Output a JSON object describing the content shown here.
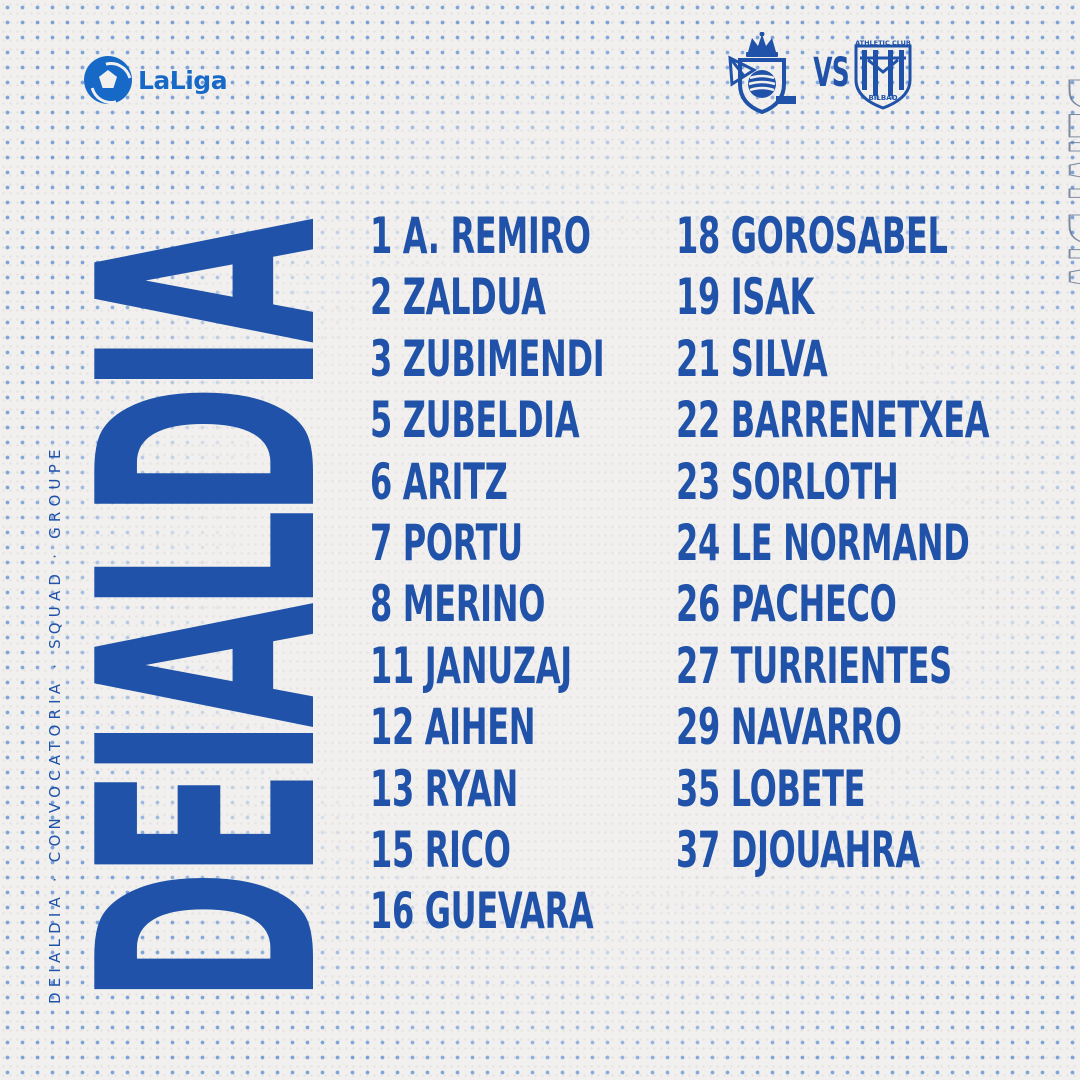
{
  "brand": {
    "league": "LaLiga",
    "accent": "#1f52a8",
    "league_color": "#1769c7"
  },
  "match": {
    "home_crest": "real-sociedad-crest",
    "vs": "VS",
    "away_crest": "athletic-club-crest",
    "away_crest_text": "ATHLETIC CLUB",
    "away_crest_city": "BILBAO"
  },
  "title": "DEIALDIA",
  "caption": "DEIALDIA · CONVOCATORIA · SQUAD · GROUPE",
  "squad_left": [
    "1 A. REMIRO",
    "2 ZALDUA",
    "3 ZUBIMENDI",
    "5 ZUBELDIA",
    "6 ARITZ",
    "7 PORTU",
    "8 MERINO",
    "11 JANUZAJ",
    "12 AIHEN",
    "13 RYAN",
    "15 RICO",
    "16 GUEVARA"
  ],
  "squad_right": [
    "18 GOROSABEL",
    "19 ISAK",
    "21 SILVA",
    "22 BARRENETXEA",
    "23 SORLOTH",
    "24 LE NORMAND",
    "26 PACHECO",
    "27 TURRIENTES",
    "29 NAVARRO",
    "35 LOBETE",
    "37 DJOUAHRA"
  ]
}
